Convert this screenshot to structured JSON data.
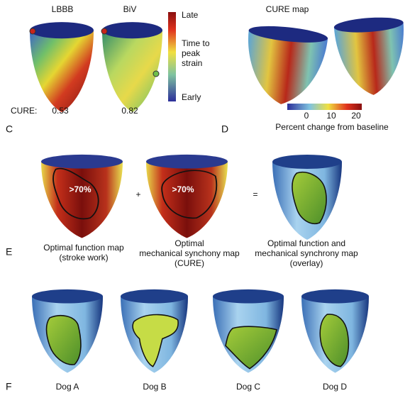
{
  "panel_c": {
    "label": "C",
    "columns": [
      "LBBB",
      "BiV"
    ],
    "colorbar": {
      "top": "Late",
      "middle": [
        "Time to",
        "peak",
        "strain"
      ],
      "bottom": "Early"
    },
    "cure_label": "CURE:",
    "cure_values": [
      0.53,
      0.82
    ]
  },
  "panel_d": {
    "label": "D",
    "title": "CURE map",
    "colorbar_ticks": [
      0,
      10,
      20
    ],
    "colorbar_label": "Percent change from baseline"
  },
  "panel_e": {
    "label": "E",
    "region_labels": [
      ">70%",
      ">70%"
    ],
    "operators": [
      "+",
      "="
    ],
    "captions": [
      [
        "Optimal function map",
        "(stroke work)"
      ],
      [
        "Optimal",
        "mechanical synchony map",
        "(CURE)"
      ],
      [
        "Optimal function and",
        "mechanical synchrony map",
        "(overlay)"
      ]
    ]
  },
  "panel_f": {
    "label": "F",
    "dogs": [
      "Dog A",
      "Dog B",
      "Dog C",
      "Dog D"
    ]
  }
}
